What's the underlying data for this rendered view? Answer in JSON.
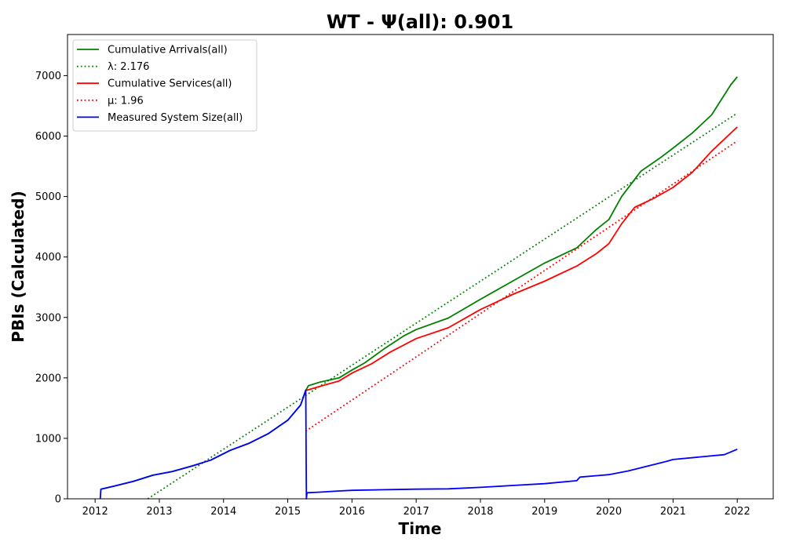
{
  "chart_data": {
    "type": "line",
    "title": "WT -  Ψ(all): 0.901",
    "xlabel": "Time",
    "ylabel": "PBIs (Calculated)",
    "xlim": [
      2011.57,
      2022.56
    ],
    "ylim": [
      0,
      7680
    ],
    "xticks": [
      2012,
      2013,
      2014,
      2015,
      2016,
      2017,
      2018,
      2019,
      2020,
      2021,
      2022
    ],
    "yticks": [
      0,
      1000,
      2000,
      3000,
      4000,
      5000,
      6000,
      7000
    ],
    "grid": false,
    "legend_position": "top-left",
    "series": [
      {
        "name": "Cumulative Arrivals(all)",
        "color": "#008000",
        "style": "solid",
        "points": [
          [
            2012.09,
            160
          ],
          [
            2012.3,
            210
          ],
          [
            2012.6,
            290
          ],
          [
            2012.9,
            390
          ],
          [
            2013.2,
            450
          ],
          [
            2013.5,
            540
          ],
          [
            2013.8,
            640
          ],
          [
            2014.1,
            800
          ],
          [
            2014.4,
            920
          ],
          [
            2014.7,
            1080
          ],
          [
            2015.0,
            1300
          ],
          [
            2015.2,
            1550
          ],
          [
            2015.28,
            1790
          ],
          [
            2015.32,
            1870
          ],
          [
            2015.5,
            1930
          ],
          [
            2015.8,
            2000
          ],
          [
            2016.0,
            2130
          ],
          [
            2016.2,
            2250
          ],
          [
            2016.5,
            2480
          ],
          [
            2016.8,
            2690
          ],
          [
            2017.0,
            2800
          ],
          [
            2017.5,
            2990
          ],
          [
            2018.0,
            3300
          ],
          [
            2018.5,
            3600
          ],
          [
            2019.0,
            3900
          ],
          [
            2019.5,
            4150
          ],
          [
            2019.8,
            4450
          ],
          [
            2020.0,
            4620
          ],
          [
            2020.2,
            5000
          ],
          [
            2020.5,
            5420
          ],
          [
            2020.8,
            5640
          ],
          [
            2021.0,
            5800
          ],
          [
            2021.3,
            6050
          ],
          [
            2021.6,
            6350
          ],
          [
            2021.9,
            6850
          ],
          [
            2022.0,
            6980
          ]
        ]
      },
      {
        "name": "λ: 2.176",
        "color": "#008000",
        "style": "dotted",
        "points": [
          [
            2012.82,
            0
          ],
          [
            2022.0,
            6380
          ]
        ]
      },
      {
        "name": "Cumulative Services(all)",
        "color": "#ff0000",
        "style": "solid",
        "points": [
          [
            2015.28,
            1790
          ],
          [
            2015.5,
            1860
          ],
          [
            2015.8,
            1950
          ],
          [
            2016.0,
            2080
          ],
          [
            2016.3,
            2230
          ],
          [
            2016.6,
            2430
          ],
          [
            2017.0,
            2650
          ],
          [
            2017.5,
            2830
          ],
          [
            2018.0,
            3130
          ],
          [
            2018.5,
            3380
          ],
          [
            2019.0,
            3600
          ],
          [
            2019.5,
            3850
          ],
          [
            2019.8,
            4050
          ],
          [
            2020.0,
            4220
          ],
          [
            2020.2,
            4550
          ],
          [
            2020.4,
            4820
          ],
          [
            2020.7,
            4970
          ],
          [
            2021.0,
            5150
          ],
          [
            2021.3,
            5400
          ],
          [
            2021.6,
            5750
          ],
          [
            2021.9,
            6050
          ],
          [
            2022.0,
            6150
          ]
        ]
      },
      {
        "name": "μ: 1.96",
        "color": "#ff0000",
        "style": "dotted",
        "points": [
          [
            2015.28,
            1120
          ],
          [
            2022.0,
            5920
          ]
        ]
      },
      {
        "name": "Measured System Size(all)",
        "color": "#0000ff",
        "style": "solid",
        "points": [
          [
            2012.08,
            0
          ],
          [
            2012.09,
            160
          ],
          [
            2012.3,
            210
          ],
          [
            2012.6,
            290
          ],
          [
            2012.9,
            390
          ],
          [
            2013.2,
            450
          ],
          [
            2013.5,
            540
          ],
          [
            2013.8,
            640
          ],
          [
            2014.1,
            800
          ],
          [
            2014.4,
            920
          ],
          [
            2014.7,
            1080
          ],
          [
            2015.0,
            1300
          ],
          [
            2015.2,
            1550
          ],
          [
            2015.28,
            1800
          ],
          [
            2015.29,
            0
          ],
          [
            2015.3,
            100
          ],
          [
            2015.5,
            110
          ],
          [
            2015.8,
            130
          ],
          [
            2016.0,
            140
          ],
          [
            2016.5,
            150
          ],
          [
            2017.0,
            160
          ],
          [
            2017.5,
            165
          ],
          [
            2018.0,
            190
          ],
          [
            2018.5,
            220
          ],
          [
            2019.0,
            250
          ],
          [
            2019.5,
            300
          ],
          [
            2019.55,
            360
          ],
          [
            2020.0,
            400
          ],
          [
            2020.3,
            460
          ],
          [
            2020.6,
            540
          ],
          [
            2020.9,
            620
          ],
          [
            2021.0,
            650
          ],
          [
            2021.5,
            700
          ],
          [
            2021.8,
            730
          ],
          [
            2022.0,
            820
          ]
        ]
      }
    ]
  }
}
